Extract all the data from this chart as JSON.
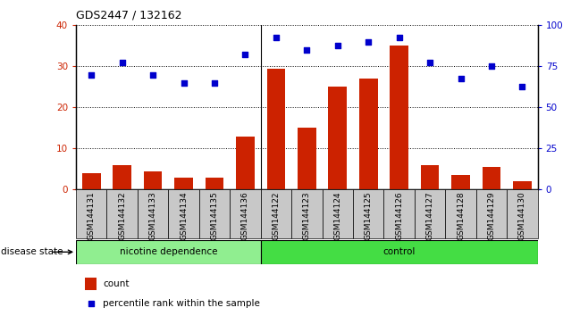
{
  "title": "GDS2447 / 132162",
  "samples": [
    "GSM144131",
    "GSM144132",
    "GSM144133",
    "GSM144134",
    "GSM144135",
    "GSM144136",
    "GSM144122",
    "GSM144123",
    "GSM144124",
    "GSM144125",
    "GSM144126",
    "GSM144127",
    "GSM144128",
    "GSM144129",
    "GSM144130"
  ],
  "counts": [
    4,
    6,
    4.5,
    3,
    3,
    13,
    29.5,
    15,
    25,
    27,
    35,
    6,
    3.5,
    5.5,
    2
  ],
  "percentile": [
    70,
    77.5,
    70,
    65,
    65,
    82.5,
    92.5,
    85,
    87.5,
    90,
    92.5,
    77.5,
    67.5,
    75,
    62.5
  ],
  "group1_label": "nicotine dependence",
  "group2_label": "control",
  "group1_count": 6,
  "group2_count": 9,
  "bar_color": "#cc2200",
  "dot_color": "#0000cc",
  "ylim_left": [
    0,
    40
  ],
  "ylim_right": [
    0,
    100
  ],
  "yticks_left": [
    0,
    10,
    20,
    30,
    40
  ],
  "yticks_right": [
    0,
    25,
    50,
    75,
    100
  ],
  "group1_bg": "#90ee90",
  "group2_bg": "#44dd44",
  "xlabel_bg": "#c8c8c8",
  "disease_state_label": "disease state",
  "legend_count_label": "count",
  "legend_pct_label": "percentile rank within the sample"
}
